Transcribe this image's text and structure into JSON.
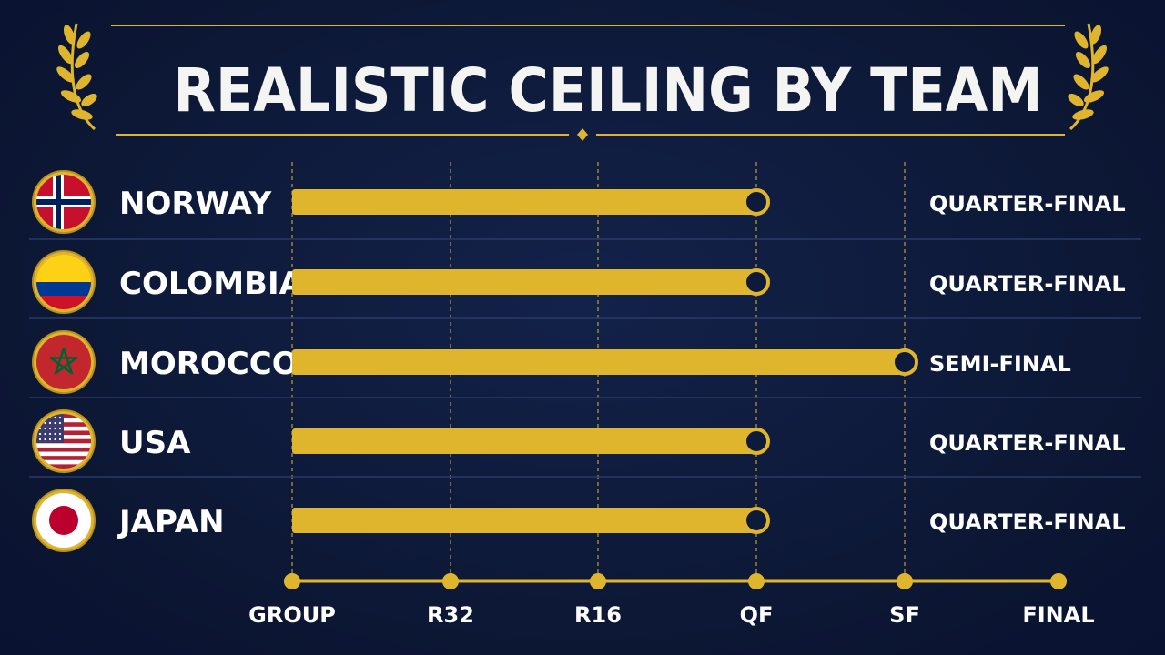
{
  "title": "REALISTIC CEILING BY TEAM",
  "colors": {
    "background": "#0e1a3a",
    "gold": "#e0b52e",
    "text": "#ffffff"
  },
  "chart_data": {
    "type": "bar",
    "orientation": "horizontal",
    "title": "REALISTIC CEILING BY TEAM",
    "x_stages": [
      "GROUP",
      "R32",
      "R16",
      "QF",
      "SF",
      "FINAL"
    ],
    "categories": [
      "NORWAY",
      "COLOMBIA",
      "MOROCCO",
      "USA",
      "JAPAN"
    ],
    "values": [
      "QF",
      "QF",
      "SF",
      "QF",
      "QF"
    ],
    "value_labels": [
      "QUARTER-FINAL",
      "QUARTER-FINAL",
      "SEMI-FINAL",
      "QUARTER-FINAL",
      "QUARTER-FINAL"
    ],
    "flags": [
      "norway-flag-icon",
      "colombia-flag-icon",
      "morocco-flag-icon",
      "usa-flag-icon",
      "japan-flag-icon"
    ],
    "grid": "vertical dashed lines at stages",
    "decorations": [
      "laurel-left-icon",
      "laurel-right-icon"
    ]
  }
}
